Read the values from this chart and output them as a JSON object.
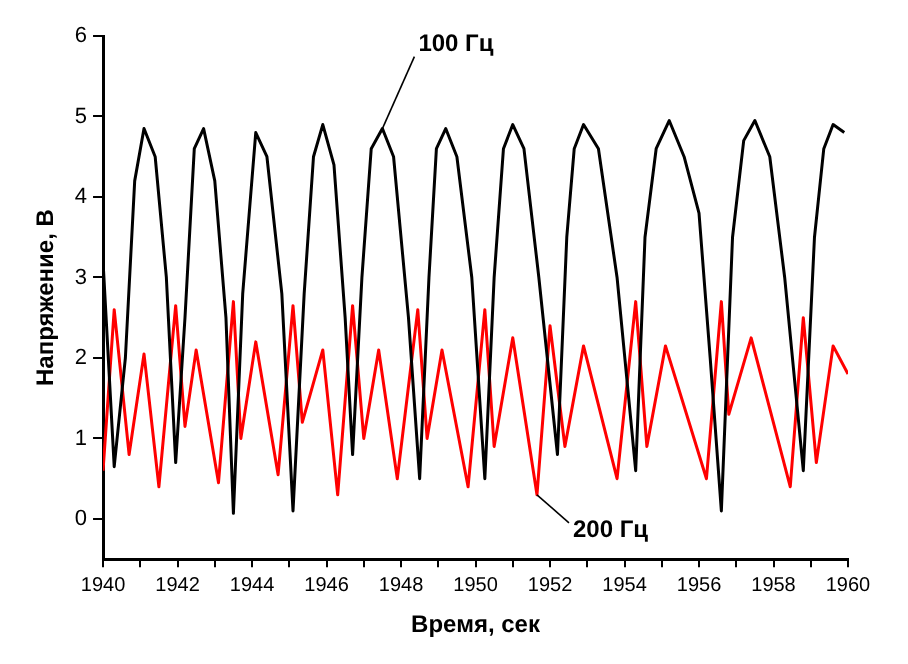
{
  "chart_data": {
    "type": "line",
    "xlabel": "Время, сек",
    "ylabel": "Напряжение, В",
    "xlim": [
      1940,
      1960
    ],
    "xticks": [
      1940,
      {
        "value": 1941,
        "label": null
      },
      1942,
      {
        "value": 1943,
        "label": null
      },
      1944,
      {
        "value": 1945,
        "label": null
      },
      1946,
      {
        "value": 1947,
        "label": null
      },
      1948,
      {
        "value": 1949,
        "label": null
      },
      1950,
      {
        "value": 1951,
        "label": null
      },
      1952,
      {
        "value": 1953,
        "label": null
      },
      1954,
      {
        "value": 1955,
        "label": null
      },
      1956,
      {
        "value": 1957,
        "label": null
      },
      1958,
      {
        "value": 1959,
        "label": null
      },
      1960
    ],
    "ylim": [
      -0.5,
      6
    ],
    "yticks": [
      0,
      1,
      2,
      3,
      4,
      5,
      6
    ],
    "grid": false,
    "legend": false,
    "marker": "none",
    "line_style": "solid",
    "series": [
      {
        "color": "#000000",
        "x": [
          1940.0,
          1940.3,
          1940.6,
          1940.85,
          1941.1,
          1941.4,
          1941.7,
          1941.95,
          1942.2,
          1942.45,
          1942.7,
          1943.0,
          1943.3,
          1943.5,
          1943.75,
          1944.1,
          1944.4,
          1944.8,
          1945.1,
          1945.4,
          1945.65,
          1945.9,
          1946.2,
          1946.5,
          1946.7,
          1946.95,
          1947.2,
          1947.5,
          1947.8,
          1948.2,
          1948.5,
          1948.75,
          1948.95,
          1949.2,
          1949.5,
          1949.9,
          1950.25,
          1950.5,
          1950.75,
          1951.0,
          1951.3,
          1951.7,
          1952.2,
          1952.45,
          1952.65,
          1952.9,
          1953.3,
          1953.8,
          1954.3,
          1954.55,
          1954.85,
          1955.2,
          1955.6,
          1956.0,
          1956.3,
          1956.6,
          1956.9,
          1957.2,
          1957.5,
          1957.9,
          1958.3,
          1958.8,
          1959.1,
          1959.35,
          1959.6,
          1959.9
        ],
        "values": [
          3.2,
          0.65,
          2.0,
          4.2,
          4.85,
          4.5,
          3.0,
          0.7,
          2.5,
          4.6,
          4.85,
          4.2,
          2.5,
          0.07,
          2.8,
          4.8,
          4.5,
          2.8,
          0.1,
          2.8,
          4.5,
          4.9,
          4.4,
          2.5,
          0.8,
          3.0,
          4.6,
          4.85,
          4.5,
          2.5,
          0.5,
          3.0,
          4.6,
          4.85,
          4.5,
          3.0,
          0.5,
          3.0,
          4.6,
          4.9,
          4.6,
          3.0,
          0.8,
          3.5,
          4.6,
          4.9,
          4.6,
          3.0,
          0.6,
          3.5,
          4.6,
          4.95,
          4.5,
          3.8,
          2.0,
          0.1,
          3.5,
          4.7,
          4.95,
          4.5,
          3.0,
          0.6,
          3.5,
          4.6,
          4.9,
          4.8
        ]
      },
      {
        "color": "#ff0000",
        "x": [
          1940.0,
          1940.3,
          1940.7,
          1941.1,
          1941.5,
          1941.95,
          1942.2,
          1942.5,
          1943.1,
          1943.5,
          1943.7,
          1944.1,
          1944.7,
          1945.1,
          1945.35,
          1945.9,
          1946.3,
          1946.7,
          1947.0,
          1947.4,
          1947.9,
          1948.45,
          1948.7,
          1949.1,
          1949.8,
          1950.25,
          1950.5,
          1951.0,
          1951.65,
          1952.0,
          1952.4,
          1952.9,
          1953.8,
          1954.3,
          1954.6,
          1955.1,
          1956.2,
          1956.6,
          1956.8,
          1957.4,
          1958.45,
          1958.8,
          1959.15,
          1959.6,
          1960.0
        ],
        "values": [
          0.6,
          2.6,
          0.8,
          2.05,
          0.4,
          2.65,
          1.15,
          2.1,
          0.45,
          2.7,
          1.0,
          2.2,
          0.55,
          2.65,
          1.2,
          2.1,
          0.3,
          2.65,
          1.0,
          2.1,
          0.5,
          2.6,
          1.0,
          2.1,
          0.4,
          2.6,
          0.9,
          2.25,
          0.3,
          2.4,
          0.9,
          2.15,
          0.5,
          2.7,
          0.9,
          2.15,
          0.5,
          2.7,
          1.3,
          2.25,
          0.4,
          2.5,
          0.7,
          2.15,
          1.8
        ]
      }
    ],
    "annotations": [
      {
        "text": "100 Гц",
        "x": 1947.5,
        "y": 4.85
      },
      {
        "text": "200 Гц",
        "x": 1951.65,
        "y": 0.3
      }
    ]
  }
}
